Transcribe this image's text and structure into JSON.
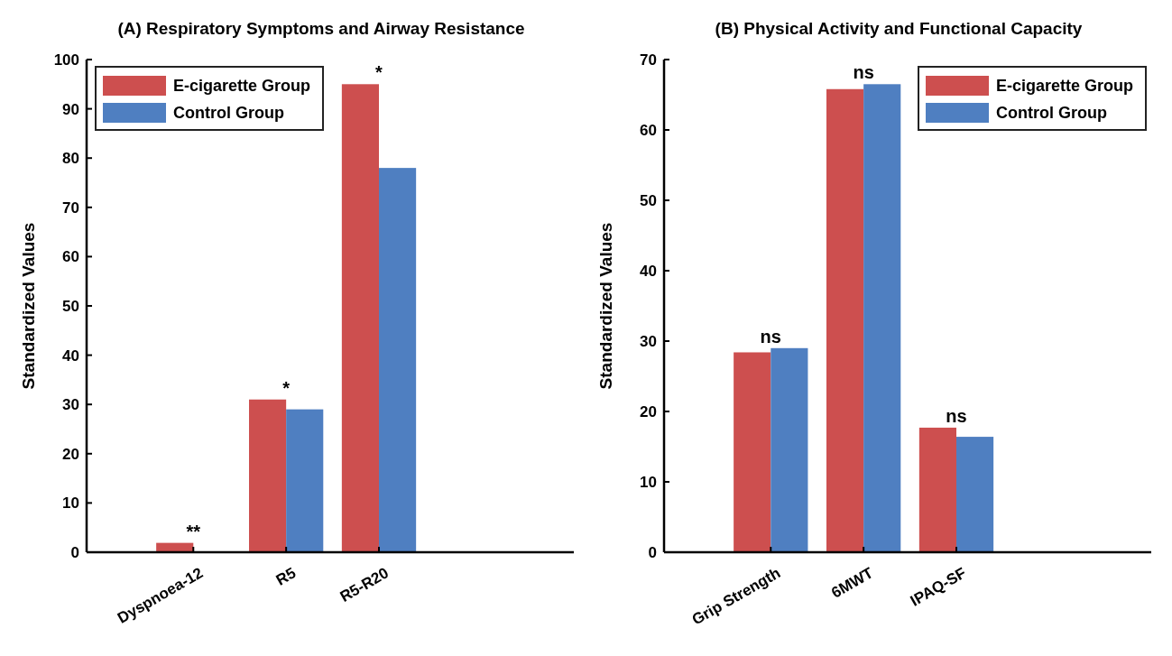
{
  "chart_data": [
    {
      "type": "bar",
      "title": "(A) Respiratory Symptoms and Airway Resistance",
      "ylabel": "Standardized Values",
      "categories": [
        "Dyspnoea-12",
        "R5",
        "R5-R20"
      ],
      "series": [
        {
          "name": "E-cigarette Group",
          "color": "#cd4f4f",
          "values": [
            1.9,
            31,
            95
          ]
        },
        {
          "name": "Control Group",
          "color": "#4f7fc1",
          "values": [
            0,
            29,
            78
          ]
        }
      ],
      "ylim": [
        0,
        100
      ],
      "yticks": [
        0,
        10,
        20,
        30,
        40,
        50,
        60,
        70,
        80,
        90,
        100
      ],
      "legend": "top left",
      "grid": false,
      "annotations": [
        {
          "text": "**",
          "x": "Dyspnoea-12",
          "y": 1.9
        },
        {
          "text": "*",
          "x": "R5",
          "y": 31
        },
        {
          "text": "*",
          "x": "R5-R20",
          "y": 95
        }
      ]
    },
    {
      "type": "bar",
      "title": "(B) Physical Activity and Functional Capacity",
      "ylabel": "Standardized Values",
      "categories": [
        "Grip Strength",
        "6MWT",
        "IPAQ-SF"
      ],
      "series": [
        {
          "name": "E-cigarette Group",
          "color": "#cd4f4f",
          "values": [
            28.4,
            65.8,
            17.7
          ]
        },
        {
          "name": "Control Group",
          "color": "#4f7fc1",
          "values": [
            29.0,
            66.5,
            16.4
          ]
        }
      ],
      "ylim": [
        0,
        70
      ],
      "yticks": [
        0,
        10,
        20,
        30,
        40,
        50,
        60,
        70
      ],
      "legend": "top right",
      "grid": false,
      "annotations": [
        {
          "text": "ns",
          "x": "Grip Strength",
          "y": 29.0
        },
        {
          "text": "ns",
          "x": "6MWT",
          "y": 66.5
        },
        {
          "text": "ns",
          "x": "IPAQ-SF",
          "y": 17.7
        }
      ]
    }
  ]
}
